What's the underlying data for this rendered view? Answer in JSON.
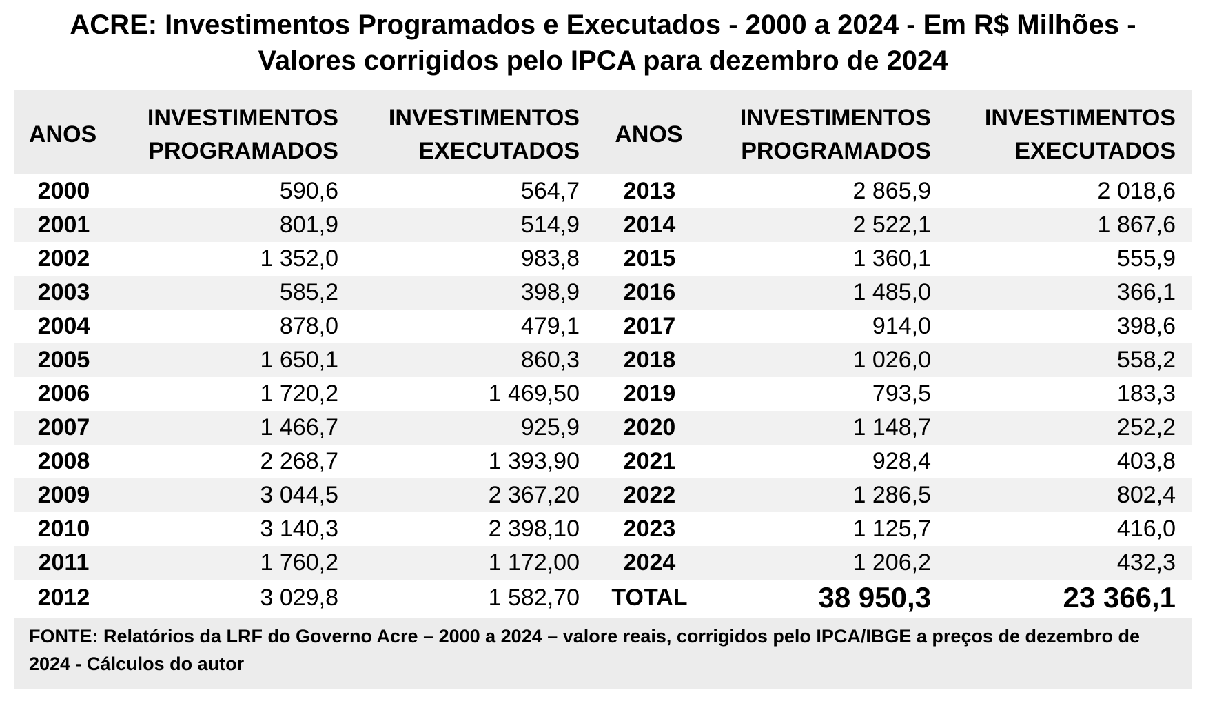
{
  "title": {
    "line1": "ACRE: Investimentos Programados e Executados - 2000 a 2024 - Em R$ Milhões -",
    "line2": "Valores corrigidos pelo IPCA para dezembro de 2024"
  },
  "headers": {
    "anos": "ANOS",
    "prog_line1": "INVESTIMENTOS",
    "prog_line2": "PROGRAMADOS",
    "exec_line1": "INVESTIMENTOS",
    "exec_line2": "EXECUTADOS"
  },
  "rows": [
    {
      "ano1": "2000",
      "prog1": "590,6",
      "exec1": "564,7",
      "ano2": "2013",
      "prog2": "2 865,9",
      "exec2": "2 018,6"
    },
    {
      "ano1": "2001",
      "prog1": "801,9",
      "exec1": "514,9",
      "ano2": "2014",
      "prog2": "2 522,1",
      "exec2": "1 867,6"
    },
    {
      "ano1": "2002",
      "prog1": "1 352,0",
      "exec1": "983,8",
      "ano2": "2015",
      "prog2": "1 360,1",
      "exec2": "555,9"
    },
    {
      "ano1": "2003",
      "prog1": "585,2",
      "exec1": "398,9",
      "ano2": "2016",
      "prog2": "1 485,0",
      "exec2": "366,1"
    },
    {
      "ano1": "2004",
      "prog1": "878,0",
      "exec1": "479,1",
      "ano2": "2017",
      "prog2": "914,0",
      "exec2": "398,6"
    },
    {
      "ano1": "2005",
      "prog1": "1 650,1",
      "exec1": "860,3",
      "ano2": "2018",
      "prog2": "1 026,0",
      "exec2": "558,2"
    },
    {
      "ano1": "2006",
      "prog1": "1 720,2",
      "exec1": "1 469,50",
      "ano2": "2019",
      "prog2": "793,5",
      "exec2": "183,3"
    },
    {
      "ano1": "2007",
      "prog1": "1 466,7",
      "exec1": "925,9",
      "ano2": "2020",
      "prog2": "1 148,7",
      "exec2": "252,2"
    },
    {
      "ano1": "2008",
      "prog1": "2 268,7",
      "exec1": "1 393,90",
      "ano2": "2021",
      "prog2": "928,4",
      "exec2": "403,8"
    },
    {
      "ano1": "2009",
      "prog1": "3 044,5",
      "exec1": "2 367,20",
      "ano2": "2022",
      "prog2": "1 286,5",
      "exec2": "802,4"
    },
    {
      "ano1": "2010",
      "prog1": "3 140,3",
      "exec1": "2 398,10",
      "ano2": "2023",
      "prog2": "1 125,7",
      "exec2": "416,0"
    },
    {
      "ano1": "2011",
      "prog1": "1 760,2",
      "exec1": "1 172,00",
      "ano2": "2024",
      "prog2": "1 206,2",
      "exec2": "432,3"
    }
  ],
  "last_row": {
    "ano1": "2012",
    "prog1": "3 029,8",
    "exec1": "1 582,70",
    "total_label": "TOTAL",
    "total_prog": "38 950,3",
    "total_exec": "23 366,1"
  },
  "source": {
    "line1": "FONTE: Relatórios da LRF do Governo Acre – 2000 a 2024 – valore reais, corrigidos pelo IPCA/IBGE a preços de dezembro de",
    "line2": "2024 - Cálculos do autor"
  }
}
